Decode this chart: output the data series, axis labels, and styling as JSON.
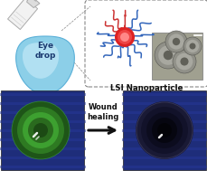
{
  "bg_color": "#ffffff",
  "top": {
    "drop_color": "#8ccfe8",
    "drop_highlight": "#b8e4f4",
    "drop_edge": "#5ab0d8",
    "drop_text_color": "#1a3a70",
    "bottle_body": "#f0f0f0",
    "bottle_edge": "#aaaaaa",
    "box_edge": "#888888",
    "np_center": "#cc3333",
    "np_center2": "#ee6666",
    "np_arm_blue": "#3366bb",
    "np_arm_red": "#cc3333",
    "np_arm_alt": "#9966aa",
    "tem_bg": "#a0a090",
    "tem_circle_fill": "#787870",
    "tem_circle_dark": "#555550",
    "label_color": "#111111",
    "label": "LSI Nanoparticle"
  },
  "bottom": {
    "bg_dark": "#1e2d7a",
    "stripe_color": "#263898",
    "left_cornea_outer": "#2a6a20",
    "left_cornea_mid": "#3a9030",
    "left_cornea_inner": "#1a4a10",
    "right_cornea_outer": "#151530",
    "right_cornea_mid": "#0a0a1a",
    "right_pupil": "#040408",
    "arrow_color": "#111111",
    "wound_text": "Wound\nhealing",
    "wound_text_color": "#111111"
  },
  "figsize": [
    2.3,
    1.89
  ],
  "dpi": 100
}
